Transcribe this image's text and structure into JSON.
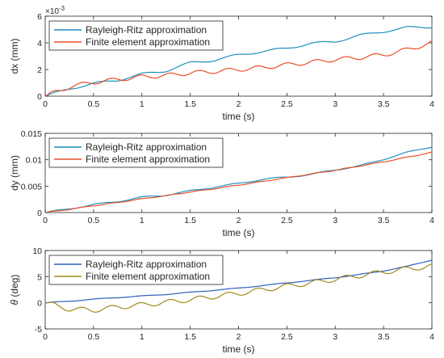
{
  "chart_data": [
    {
      "type": "line",
      "xlabel": "time (s)",
      "ylabel": "dx (mm)",
      "xlim": [
        0,
        4
      ],
      "ylim": [
        0,
        6
      ],
      "xticks": [
        "0",
        "0.5",
        "1",
        "1.5",
        "2",
        "2.5",
        "3",
        "3.5",
        "4"
      ],
      "yticks": [
        "0",
        "2",
        "4",
        "6"
      ],
      "y_exponent": "×10",
      "y_exponent_power": "-3",
      "legend_position": "top-left",
      "series": [
        {
          "name": "Rayleigh-Ritz approximation",
          "color": "#1f8fbf",
          "x": [
            0,
            0.25,
            0.5,
            0.75,
            1,
            1.25,
            1.5,
            1.75,
            2,
            2.25,
            2.5,
            2.75,
            3,
            3.25,
            3.5,
            3.75,
            4
          ],
          "y": [
            0,
            0.55,
            0.95,
            1.2,
            1.65,
            1.9,
            2.5,
            2.7,
            3.1,
            3.35,
            3.6,
            3.95,
            4.1,
            4.55,
            4.85,
            5.15,
            5.2
          ]
        },
        {
          "name": "Finite element approximation",
          "color": "#e8502a",
          "x": [
            0,
            0.25,
            0.5,
            0.75,
            1,
            1.25,
            1.5,
            1.75,
            2,
            2.25,
            2.5,
            2.75,
            3,
            3.25,
            3.5,
            3.75,
            4
          ],
          "y": [
            0,
            0.7,
            1.05,
            1.25,
            1.45,
            1.55,
            1.75,
            1.85,
            2.0,
            2.15,
            2.35,
            2.55,
            2.75,
            2.9,
            3.1,
            3.5,
            4.0
          ]
        }
      ]
    },
    {
      "type": "line",
      "xlabel": "time (s)",
      "ylabel": "dy (mm)",
      "xlim": [
        0,
        4
      ],
      "ylim": [
        0,
        0.015
      ],
      "xticks": [
        "0",
        "0.5",
        "1",
        "1.5",
        "2",
        "2.5",
        "3",
        "3.5",
        "4"
      ],
      "yticks": [
        "0",
        "0.005",
        "0.01",
        "0.015"
      ],
      "legend_position": "top-left",
      "series": [
        {
          "name": "Rayleigh-Ritz approximation",
          "color": "#1f8fbf",
          "x": [
            0,
            0.25,
            0.5,
            0.75,
            1,
            1.25,
            1.5,
            1.75,
            2,
            2.25,
            2.5,
            2.75,
            3,
            3.25,
            3.5,
            3.75,
            4
          ],
          "y": [
            0,
            0.0007,
            0.0015,
            0.0021,
            0.0029,
            0.0033,
            0.0041,
            0.0048,
            0.0055,
            0.0063,
            0.0067,
            0.0072,
            0.0081,
            0.0088,
            0.0101,
            0.0114,
            0.0125
          ]
        },
        {
          "name": "Finite element approximation",
          "color": "#e8502a",
          "x": [
            0,
            0.25,
            0.5,
            0.75,
            1,
            1.25,
            1.5,
            1.75,
            2,
            2.25,
            2.5,
            2.75,
            3,
            3.25,
            3.5,
            3.75,
            4
          ],
          "y": [
            0,
            0.0006,
            0.0013,
            0.0019,
            0.0026,
            0.0032,
            0.0039,
            0.0045,
            0.0052,
            0.0059,
            0.0066,
            0.0073,
            0.008,
            0.0088,
            0.0096,
            0.0105,
            0.0114
          ]
        }
      ]
    },
    {
      "type": "line",
      "xlabel": "time (s)",
      "ylabel": "θ (deg)",
      "xlim": [
        0,
        4
      ],
      "ylim": [
        -5,
        10
      ],
      "xticks": [
        "0",
        "0.5",
        "1",
        "1.5",
        "2",
        "2.5",
        "3",
        "3.5",
        "4"
      ],
      "yticks": [
        "-5",
        "0",
        "5",
        "10"
      ],
      "legend_position": "top-left",
      "series": [
        {
          "name": "Rayleigh-Ritz approximation",
          "color": "#2f5fbf",
          "x": [
            0,
            0.25,
            0.5,
            0.75,
            1,
            1.25,
            1.5,
            1.75,
            2,
            2.25,
            2.5,
            2.75,
            3,
            3.25,
            3.5,
            3.75,
            4
          ],
          "y": [
            0,
            0.3,
            0.7,
            1.0,
            1.3,
            1.6,
            2.0,
            2.4,
            2.8,
            3.3,
            3.8,
            4.3,
            4.8,
            5.4,
            6.1,
            7.0,
            8.2
          ]
        },
        {
          "name": "Finite element approximation",
          "color": "#a08a1a",
          "x": [
            0,
            0.25,
            0.5,
            0.75,
            1,
            1.25,
            1.5,
            1.75,
            2,
            2.25,
            2.5,
            2.75,
            3,
            3.25,
            3.5,
            3.75,
            4
          ],
          "y": [
            0,
            -1.2,
            -1.4,
            -0.8,
            -0.4,
            0.1,
            0.6,
            1.2,
            1.8,
            2.5,
            3.2,
            3.8,
            4.5,
            5.2,
            5.9,
            6.5,
            7.0
          ]
        }
      ]
    }
  ]
}
